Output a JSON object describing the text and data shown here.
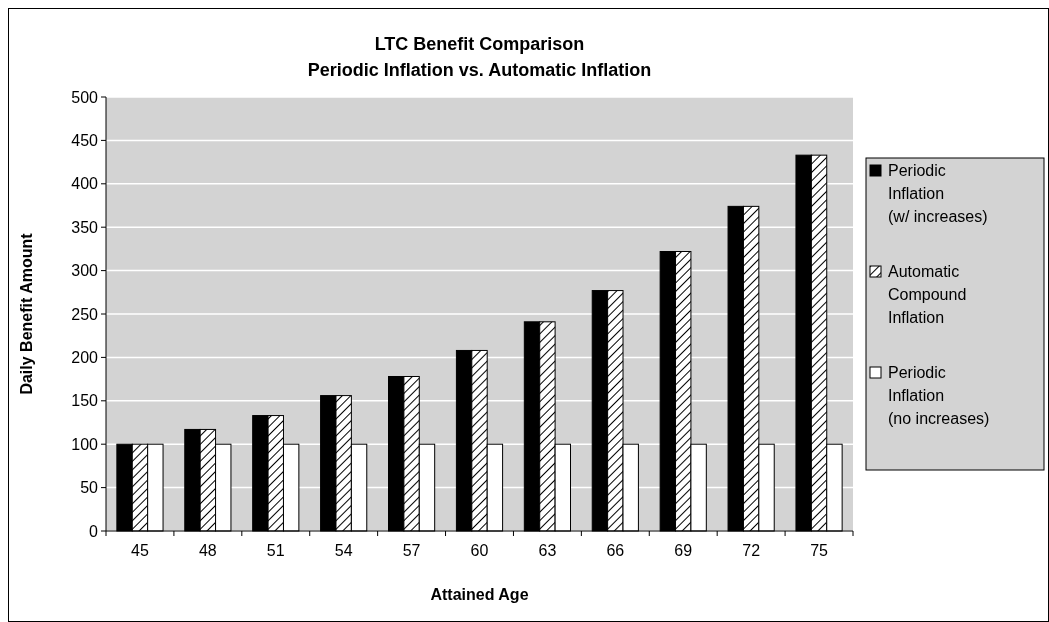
{
  "chart_data": {
    "type": "bar",
    "title": "LTC Benefit Comparison",
    "subtitle": "Periodic Inflation vs. Automatic Inflation",
    "xlabel": "Attained Age",
    "ylabel": "Daily Benefit Amount",
    "categories": [
      "45",
      "48",
      "51",
      "54",
      "57",
      "60",
      "63",
      "66",
      "69",
      "72",
      "75"
    ],
    "series": [
      {
        "name": "Periodic Inflation (w/ increases)",
        "color": "#000000",
        "values": [
          100,
          117,
          133,
          156,
          178,
          208,
          241,
          277,
          322,
          374,
          433
        ]
      },
      {
        "name": "Automatic Compound Inflation",
        "color": "#000000",
        "values": [
          100,
          117,
          133,
          156,
          178,
          208,
          241,
          277,
          322,
          374,
          433
        ]
      },
      {
        "name": "Periodic Inflation (no increases)",
        "color": "#ffffff",
        "values": [
          100,
          100,
          100,
          100,
          100,
          100,
          100,
          100,
          100,
          100,
          100
        ]
      }
    ],
    "ylim": [
      0,
      500
    ],
    "yticks": [
      0,
      50,
      100,
      150,
      200,
      250,
      300,
      350,
      400,
      450,
      500
    ],
    "grid": "y",
    "legend": "right"
  }
}
